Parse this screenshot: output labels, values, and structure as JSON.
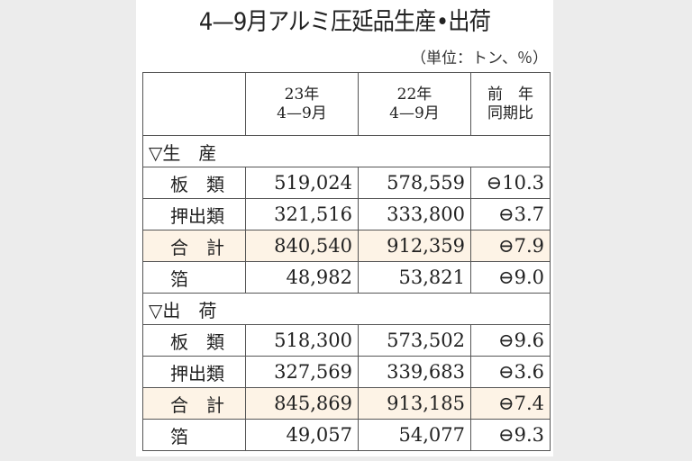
{
  "title": "4—9月アルミ圧延品生産•出荷",
  "unit": "（単位：トン、％）",
  "header": {
    "col1_line1": "23年",
    "col1_line2": "4—9月",
    "col2_line1": "22年",
    "col2_line2": "4—9月",
    "col3_line1": "前　年",
    "col3_line2": "同期比"
  },
  "sections": [
    {
      "label": "▽生　産",
      "rows": [
        {
          "label": "板　類",
          "y23": "519,024",
          "y22": "578,559",
          "ratio": "⊖10.3"
        },
        {
          "label": "押出類",
          "y23": "321,516",
          "y22": "333,800",
          "ratio": "⊖3.7"
        },
        {
          "label": "合　計",
          "y23": "840,540",
          "y22": "912,359",
          "ratio": "⊖7.9"
        },
        {
          "label": "箔",
          "y23": "48,982",
          "y22": "53,821",
          "ratio": "⊖9.0"
        }
      ]
    },
    {
      "label": "▽出　荷",
      "rows": [
        {
          "label": "板　類",
          "y23": "518,300",
          "y22": "573,502",
          "ratio": "⊖9.6"
        },
        {
          "label": "押出類",
          "y23": "327,569",
          "y22": "339,683",
          "ratio": "⊖3.6"
        },
        {
          "label": "合　計",
          "y23": "845,869",
          "y22": "913,185",
          "ratio": "⊖7.4"
        },
        {
          "label": "箔",
          "y23": "49,057",
          "y22": "54,077",
          "ratio": "⊖9.3"
        }
      ]
    }
  ],
  "colors": {
    "total_row_bg": "#fdf3e6",
    "background": "#ececec"
  }
}
